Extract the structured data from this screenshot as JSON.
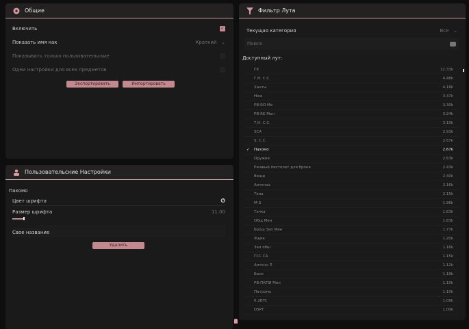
{
  "general": {
    "title": "Общие",
    "enable_label": "Включить",
    "enable_checked": true,
    "show_name_label": "Показать имя как",
    "show_name_value": "Краткий",
    "only_custom_label": "Показывать только пользовательские",
    "same_settings_label": "Одни настройки для всех предметов",
    "export_label": "Экспортировать",
    "import_label": "Импортировать"
  },
  "custom": {
    "title": "Пользовательские Настройки",
    "item_name": "Пахомо",
    "font_color_label": "Цвет шрифта",
    "font_size_label": "Размер шрифта",
    "font_size_value": "11.00",
    "custom_name_label": "Свое название",
    "delete_label": "Удалить"
  },
  "filter": {
    "title": "Фильтр Лута",
    "category_label": "Текущая категория",
    "category_value": "Все",
    "search_placeholder": "Поиск",
    "available_label": "Доступный лут:",
    "items": [
      {
        "name": "ГК",
        "value": "12.33k"
      },
      {
        "name": "Г.Н. С.С.",
        "value": "4.48k"
      },
      {
        "name": "Ханты",
        "value": "4.18k"
      },
      {
        "name": "Нож",
        "value": "3.47k"
      },
      {
        "name": "PB-RO Me",
        "value": "3.30k"
      },
      {
        "name": "PB-RK Мен",
        "value": "3.24k"
      },
      {
        "name": "Т.Н. С.С.",
        "value": "3.10k"
      },
      {
        "name": "SCA",
        "value": "2.93k"
      },
      {
        "name": "S. C.C.",
        "value": "2.67k"
      },
      {
        "name": "Пахомо",
        "value": "2.67k",
        "selected": true
      },
      {
        "name": "Оружие",
        "value": "2.63k"
      },
      {
        "name": "Ржавый пистолет для броня",
        "value": "2.43k"
      },
      {
        "name": "Вещи",
        "value": "2.40k"
      },
      {
        "name": "Аптечка",
        "value": "2.16k"
      },
      {
        "name": "Тела",
        "value": "2.15k"
      },
      {
        "name": "M-S",
        "value": "1.96k"
      },
      {
        "name": "Тачка",
        "value": "1.83k"
      },
      {
        "name": "Общ Мен",
        "value": "1.83k"
      },
      {
        "name": "Брош Зап Мен",
        "value": "1.77k"
      },
      {
        "name": "Ящик",
        "value": "1.20k"
      },
      {
        "name": "Зап обш",
        "value": "1.16k"
      },
      {
        "name": "ГСС СА",
        "value": "1.15k"
      },
      {
        "name": "Аптечн П",
        "value": "1.12k"
      },
      {
        "name": "Банк",
        "value": "1.18k"
      },
      {
        "name": "PB-ПКПИ Мен",
        "value": "1.10k"
      },
      {
        "name": "Патроны",
        "value": "1.10k"
      },
      {
        "name": "0.2BTC",
        "value": "1.09k"
      },
      {
        "name": "DSPT",
        "value": "1.00k"
      }
    ]
  },
  "colors": {
    "accent": "#c4898f",
    "panel": "#1a1a1b",
    "background": "#0e0e0f"
  }
}
